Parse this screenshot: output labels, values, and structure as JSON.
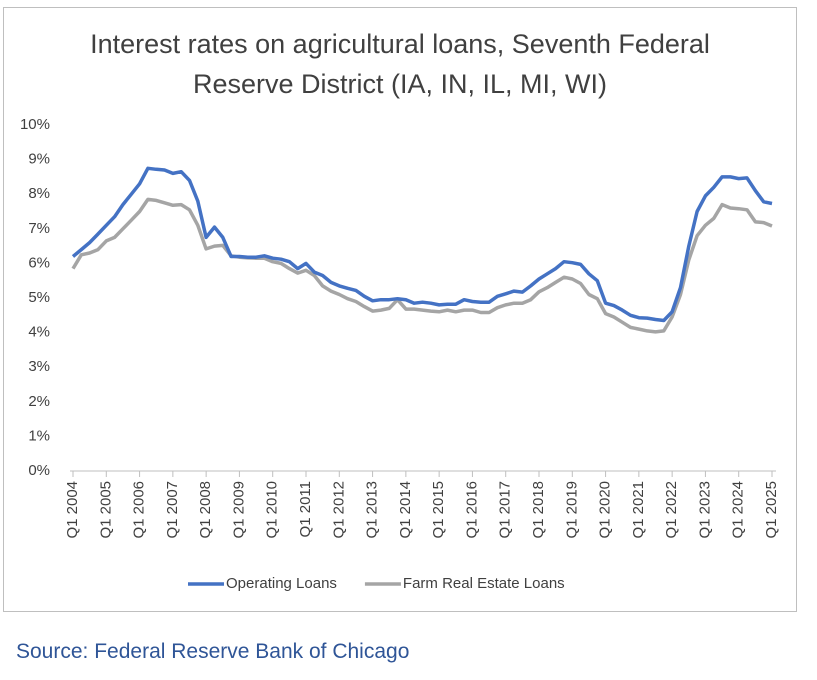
{
  "chart_data": {
    "type": "line",
    "title": "Interest rates on agricultural loans, Seventh Federal Reserve District (IA, IN, IL, MI, WI)",
    "source": "Source: Federal Reserve Bank of Chicago",
    "categories": [
      "Q1 2004",
      null,
      null,
      null,
      "Q1 2005",
      null,
      null,
      null,
      "Q1 2006",
      null,
      null,
      null,
      "Q1 2007",
      null,
      null,
      null,
      "Q1 2008",
      null,
      null,
      null,
      "Q1 2009",
      null,
      null,
      null,
      "Q1 2010",
      null,
      null,
      null,
      "Q1 2011",
      null,
      null,
      null,
      "Q1 2012",
      null,
      null,
      null,
      "Q1 2013",
      null,
      null,
      null,
      "Q1 2014",
      null,
      null,
      null,
      "Q1 2015",
      null,
      null,
      null,
      "Q1 2016",
      null,
      null,
      null,
      "Q1 2017",
      null,
      null,
      null,
      "Q1 2018",
      null,
      null,
      null,
      "Q1 2019",
      null,
      null,
      null,
      "Q1 2020",
      null,
      null,
      null,
      "Q1 2021",
      null,
      null,
      null,
      "Q1 2022",
      null,
      null,
      null,
      "Q1 2023",
      null,
      null,
      null,
      "Q1 2024",
      null,
      null,
      null,
      "Q1 2025"
    ],
    "series": [
      {
        "name": "Operating Loans",
        "color": "#4472c4",
        "values": [
          6.2,
          6.4,
          6.6,
          6.85,
          7.1,
          7.35,
          7.7,
          8.0,
          8.3,
          8.75,
          8.72,
          8.7,
          8.6,
          8.65,
          8.4,
          7.8,
          6.75,
          7.05,
          6.75,
          6.2,
          6.2,
          6.18,
          6.18,
          6.22,
          6.15,
          6.12,
          6.05,
          5.85,
          6.0,
          5.75,
          5.65,
          5.45,
          5.35,
          5.28,
          5.22,
          5.05,
          4.92,
          4.95,
          4.95,
          4.98,
          4.95,
          4.85,
          4.88,
          4.85,
          4.8,
          4.82,
          4.82,
          4.95,
          4.9,
          4.88,
          4.88,
          5.05,
          5.12,
          5.2,
          5.17,
          5.35,
          5.55,
          5.7,
          5.85,
          6.05,
          6.02,
          5.97,
          5.7,
          5.5,
          4.85,
          4.78,
          4.65,
          4.5,
          4.43,
          4.42,
          4.38,
          4.35,
          4.6,
          5.3,
          6.5,
          7.5,
          7.95,
          8.2,
          8.5,
          8.5,
          8.45,
          8.47,
          8.1,
          7.78,
          7.73
        ]
      },
      {
        "name": "Farm Real Estate Loans",
        "color": "#a5a5a5",
        "values": [
          5.85,
          6.25,
          6.3,
          6.4,
          6.65,
          6.75,
          7.0,
          7.25,
          7.5,
          7.85,
          7.82,
          7.75,
          7.68,
          7.7,
          7.55,
          7.1,
          6.42,
          6.5,
          6.52,
          6.22,
          6.18,
          6.16,
          6.15,
          6.15,
          6.05,
          6.0,
          5.85,
          5.72,
          5.8,
          5.65,
          5.35,
          5.2,
          5.1,
          4.98,
          4.9,
          4.75,
          4.62,
          4.65,
          4.7,
          4.95,
          4.68,
          4.68,
          4.65,
          4.62,
          4.6,
          4.65,
          4.6,
          4.65,
          4.65,
          4.58,
          4.58,
          4.72,
          4.8,
          4.85,
          4.85,
          4.95,
          5.18,
          5.3,
          5.45,
          5.6,
          5.55,
          5.42,
          5.1,
          4.98,
          4.55,
          4.45,
          4.3,
          4.15,
          4.1,
          4.05,
          4.02,
          4.05,
          4.45,
          5.1,
          6.1,
          6.8,
          7.1,
          7.3,
          7.7,
          7.6,
          7.58,
          7.55,
          7.2,
          7.18,
          7.08
        ]
      }
    ],
    "ylim": [
      0,
      10
    ],
    "yticks": [
      {
        "value": 0,
        "label": "0%"
      },
      {
        "value": 1,
        "label": "1%"
      },
      {
        "value": 2,
        "label": "2%"
      },
      {
        "value": 3,
        "label": "3%"
      },
      {
        "value": 4,
        "label": "4%"
      },
      {
        "value": 5,
        "label": "5%"
      },
      {
        "value": 6,
        "label": "6%"
      },
      {
        "value": 7,
        "label": "7%"
      },
      {
        "value": 8,
        "label": "8%"
      },
      {
        "value": 9,
        "label": "9%"
      },
      {
        "value": 10,
        "label": "10%"
      }
    ],
    "grid": false,
    "legend": "bottom"
  }
}
